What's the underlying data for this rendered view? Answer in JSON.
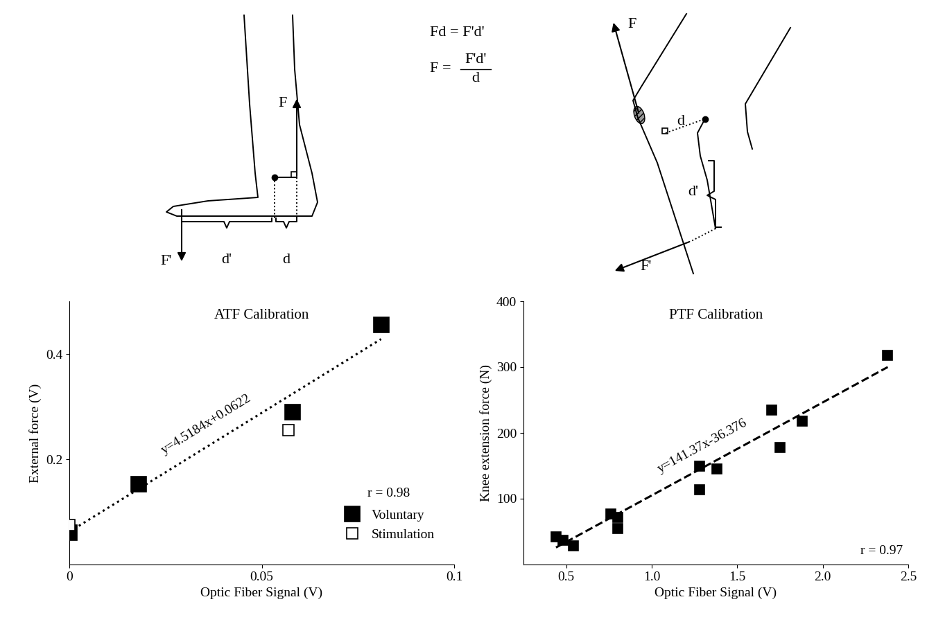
{
  "diagrams": {
    "ankle": {
      "labels": {
        "force": "F",
        "external_force": "F'",
        "lever_external": "d'",
        "lever": "d"
      }
    },
    "equations": {
      "moment": "Fd = F'd'",
      "solution": {
        "lhs": "F =",
        "numerator": "F'd'",
        "denominator": "d"
      }
    },
    "knee": {
      "labels": {
        "force": "F",
        "lever": "d",
        "lever_external": "d'",
        "external_force": "F'"
      }
    }
  },
  "chart_data": [
    {
      "type": "scatter",
      "title": "ATF Calibration",
      "x_label": "Optic Fiber Signal (V)",
      "y_label": "External force (V)",
      "xlim": [
        0,
        0.1
      ],
      "xticks": [
        0,
        0.05,
        0.1
      ],
      "ylim": [
        0,
        0.5
      ],
      "yticks": [
        0.2,
        0.4
      ],
      "legend": "lower right",
      "series": [
        {
          "name": "Voluntary",
          "color": "#000000",
          "marker": "square",
          "x": [
            0,
            0.018,
            0.058,
            0.081
          ],
          "values": [
            0.06,
            0.152,
            0.29,
            0.455
          ]
        },
        {
          "name": "Stimulation",
          "color": "#000000",
          "marker": "open square",
          "x": [
            0,
            0.057
          ],
          "values": [
            0.075,
            0.255
          ]
        }
      ],
      "trendline": {
        "label": "y=4.5184x+0.0622",
        "slope": 4.5184,
        "intercept": 0.0622,
        "x": [
          0,
          0.081
        ],
        "line_style": "dotted"
      },
      "annotations": [
        "r = 0.98"
      ]
    },
    {
      "type": "scatter",
      "title": "PTF Calibration",
      "x_label": "Optic Fiber Signal (V)",
      "y_label": "Knee extension force (N)",
      "xlim": [
        0.25,
        2.5
      ],
      "xticks": [
        {
          "value": 0.5,
          "label": "0.5"
        },
        {
          "value": 1.0,
          "label": "1.0"
        },
        {
          "value": 1.5,
          "label": "1.5"
        },
        {
          "value": 2.0,
          "label": "2.0"
        },
        {
          "value": 2.5,
          "label": "2.5"
        }
      ],
      "ylim": [
        0,
        400
      ],
      "yticks": [
        100,
        200,
        300,
        400
      ],
      "series": [
        {
          "name": "PTF",
          "color": "#000000",
          "marker": "square",
          "x": [
            0.44,
            0.48,
            0.54,
            0.76,
            0.8,
            0.8,
            1.28,
            1.28,
            1.38,
            1.7,
            1.75,
            1.88,
            2.38
          ],
          "values": [
            42,
            37,
            28,
            77,
            72,
            55,
            150,
            114,
            145,
            235,
            178,
            218,
            318
          ]
        }
      ],
      "trendline": {
        "label": "y=141.37x-36.376",
        "slope": 141.37,
        "intercept": -36.376,
        "x": [
          0.44,
          2.38
        ],
        "line_style": "dashed"
      },
      "annotations": [
        "r = 0.97"
      ]
    }
  ]
}
